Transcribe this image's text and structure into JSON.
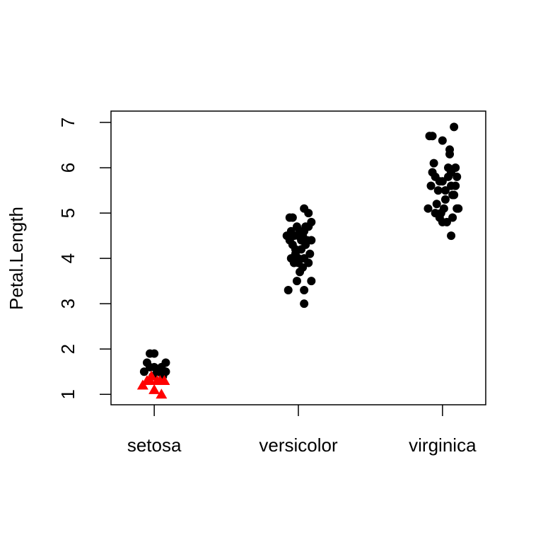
{
  "chart_data": {
    "type": "scatter",
    "ylabel": "Petal.Length",
    "xlim": [
      0.7,
      3.3
    ],
    "ylim": [
      0.77,
      7.25
    ],
    "xticks": [
      {
        "value": 1,
        "label": "setosa"
      },
      {
        "value": 2,
        "label": "versicolor"
      },
      {
        "value": 3,
        "label": "virginica"
      }
    ],
    "yticks": [
      1,
      2,
      3,
      4,
      5,
      6,
      7
    ],
    "grid": false,
    "series": [
      {
        "color": "#000000",
        "marker": "circle",
        "x": [
          0.93,
          0.95,
          0.97,
          1.0,
          1.0,
          1.03,
          1.05,
          1.08,
          1.08,
          0.97,
          1.02,
          0.99,
          1.06,
          1.93,
          2.04,
          2.04,
          2.09,
          1.99,
          2.01,
          2.03,
          2.0,
          1.95,
          2.04,
          2.07,
          2.08,
          1.98,
          2.02,
          1.96,
          2.05,
          1.92,
          1.97,
          2.0,
          2.03,
          2.06,
          2.09,
          1.94,
          2.01,
          2.04,
          2.07,
          1.99,
          1.95,
          1.94,
          1.96,
          2.04,
          2.07,
          2.09,
          2.02,
          1.98,
          2.05,
          2.0,
          1.97,
          2.9,
          2.92,
          2.91,
          2.93,
          2.94,
          2.95,
          2.97,
          2.96,
          2.98,
          2.99,
          3.0,
          3.0,
          3.02,
          3.03,
          3.04,
          3.05,
          3.05,
          3.06,
          3.06,
          3.07,
          3.07,
          3.06,
          3.08,
          3.09,
          3.09,
          3.1,
          3.11,
          3.1,
          2.95,
          3.01,
          3.04,
          2.98,
          3.08,
          3.02,
          2.93,
          3.0
        ],
        "values": [
          1.5,
          1.7,
          1.9,
          1.6,
          1.9,
          1.5,
          1.6,
          1.5,
          1.7,
          1.6,
          1.5,
          1.4,
          1.4,
          3.3,
          3.0,
          3.3,
          3.5,
          3.5,
          3.7,
          3.8,
          3.9,
          4.0,
          4.0,
          3.9,
          4.1,
          4.1,
          4.2,
          4.3,
          4.3,
          4.5,
          4.5,
          4.5,
          4.5,
          4.4,
          4.4,
          4.4,
          4.6,
          4.6,
          4.7,
          4.7,
          4.6,
          4.9,
          4.9,
          5.1,
          5.0,
          4.8,
          4.4,
          4.2,
          4.7,
          4.0,
          3.9,
          5.1,
          5.6,
          6.7,
          6.7,
          6.1,
          5.8,
          5.5,
          5.2,
          4.9,
          5.0,
          6.6,
          5.7,
          5.3,
          4.8,
          6.0,
          6.3,
          6.4,
          5.9,
          5.6,
          5.4,
          4.9,
          4.5,
          6.9,
          6.0,
          5.6,
          5.1,
          5.1,
          5.8,
          5.0,
          5.1,
          5.8,
          5.7,
          5.4,
          5.5,
          5.9,
          4.8
        ]
      },
      {
        "color": "#ff0000",
        "marker": "triangle",
        "x": [
          0.92,
          0.95,
          0.98,
          1.0,
          1.02,
          1.04,
          1.05,
          1.07,
          0.97
        ],
        "values": [
          1.2,
          1.3,
          1.4,
          1.1,
          1.3,
          1.3,
          1.0,
          1.3,
          1.3
        ]
      }
    ]
  }
}
